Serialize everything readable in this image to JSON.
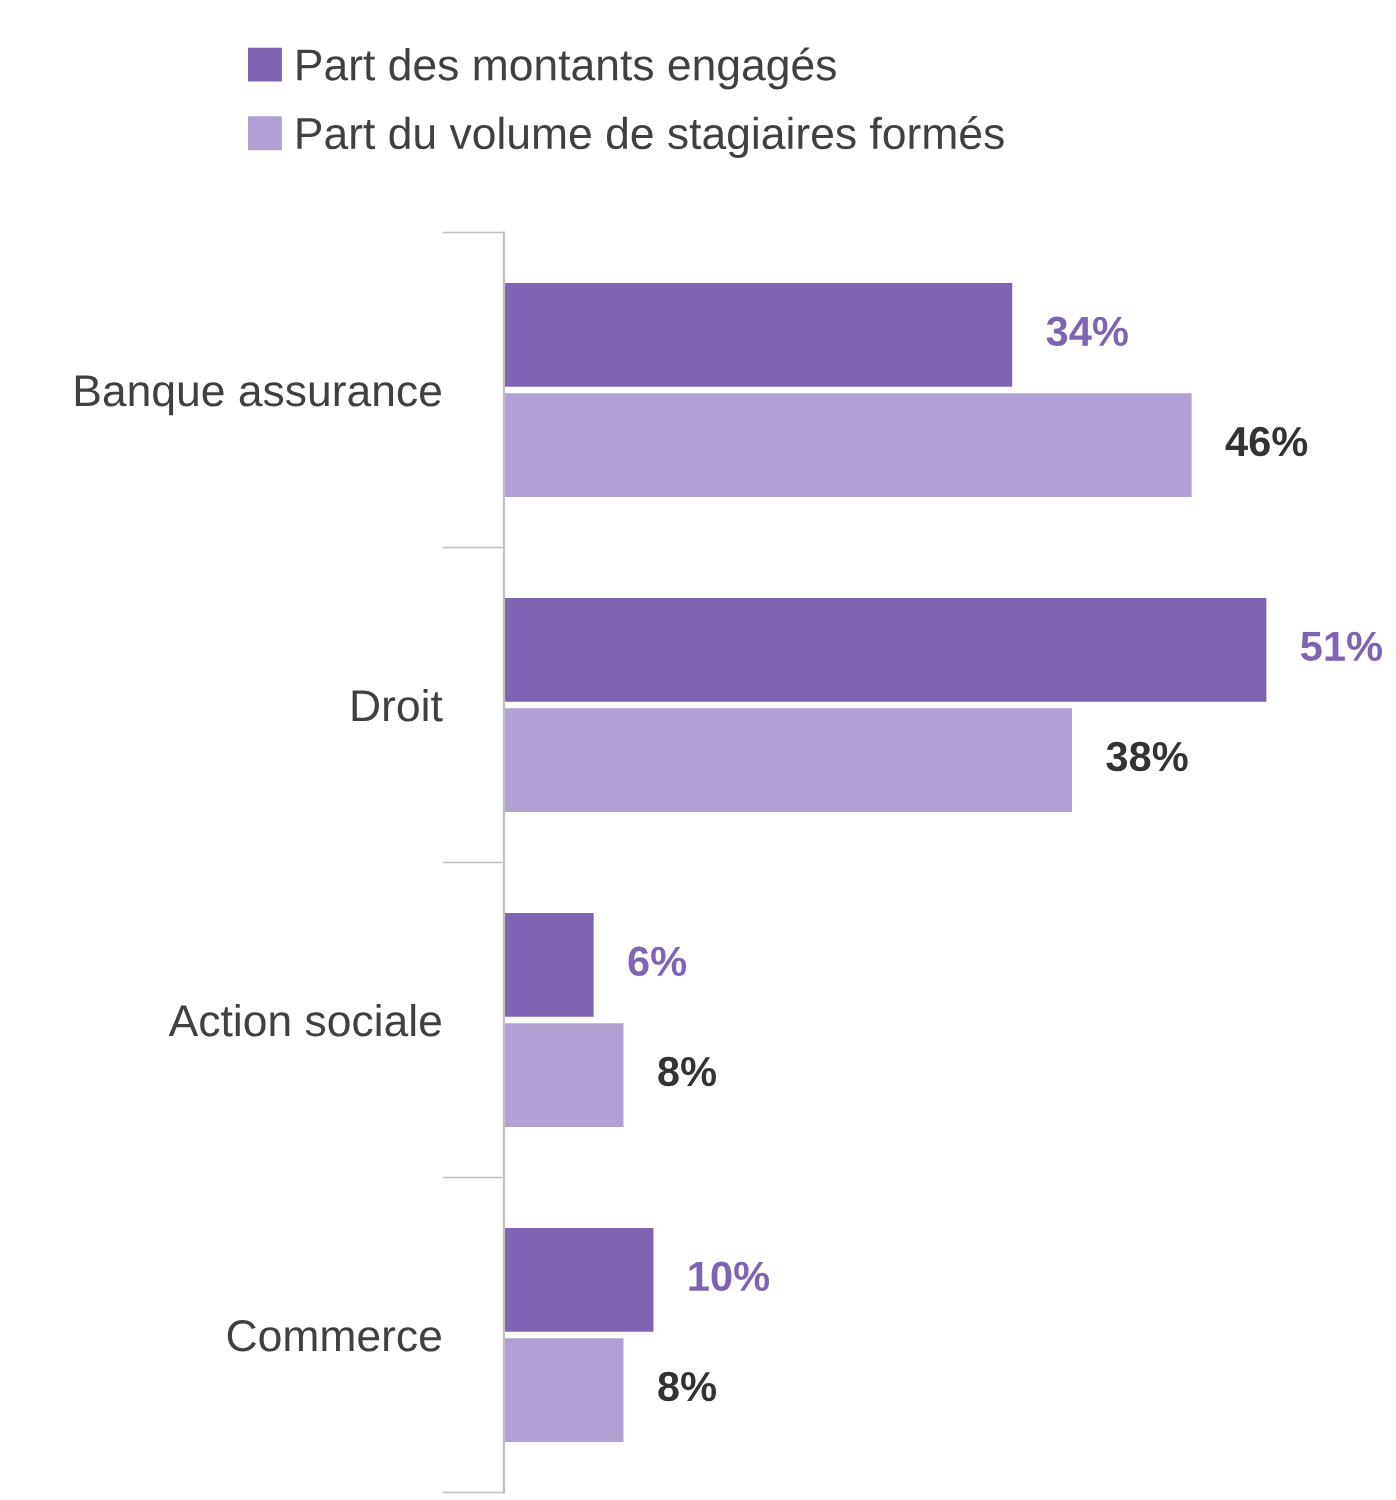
{
  "chart_data": {
    "type": "bar",
    "orientation": "horizontal",
    "categories": [
      "Banque assurance",
      "Droit",
      "Action sociale",
      "Commerce"
    ],
    "series": [
      {
        "name": "Part des montants engagés",
        "color": "#8064b4",
        "values": [
          34,
          51,
          6,
          10
        ],
        "value_labels": [
          "34%",
          "51%",
          "6%",
          "10%"
        ]
      },
      {
        "name": "Part du volume de stagiaires formés",
        "color": "#b1a0d4",
        "values": [
          46,
          38,
          8,
          8
        ],
        "value_labels": [
          "46%",
          "38%",
          "8%",
          "8%"
        ]
      }
    ],
    "legend": "top left",
    "grid": false
  }
}
